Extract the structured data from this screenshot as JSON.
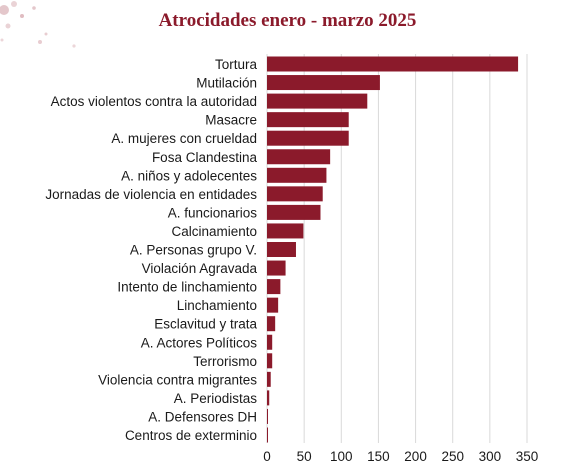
{
  "chart_data": {
    "type": "bar",
    "orientation": "horizontal",
    "title": "Atrocidades enero - marzo 2025",
    "xlabel": "",
    "ylabel": "",
    "xlim": [
      0,
      350
    ],
    "xticks": [
      0,
      50,
      100,
      150,
      200,
      250,
      300,
      350
    ],
    "grid": "vertical",
    "bar_color": "#8b1a2b",
    "categories": [
      "Tortura",
      "Mutilación",
      "Actos violentos contra la autoridad",
      "Masacre",
      "A. mujeres con crueldad",
      "Fosa Clandestina",
      "A. niños y adolecentes",
      "Jornadas de violencia en entidades",
      "A. funcionarios",
      "Calcinamiento",
      "A. Personas grupo V.",
      "Violación Agravada",
      "Intento de linchamiento",
      "Linchamiento",
      "Esclavitud y trata",
      "A. Actores Políticos",
      "Terrorismo",
      "Violencia contra migrantes",
      "A. Periodistas",
      "A. Defensores DH",
      "Centros de exterminio"
    ],
    "values": [
      338,
      152,
      135,
      110,
      110,
      85,
      80,
      75,
      72,
      49,
      39,
      25,
      18,
      15,
      11,
      7,
      7,
      5,
      3,
      1,
      1
    ]
  }
}
